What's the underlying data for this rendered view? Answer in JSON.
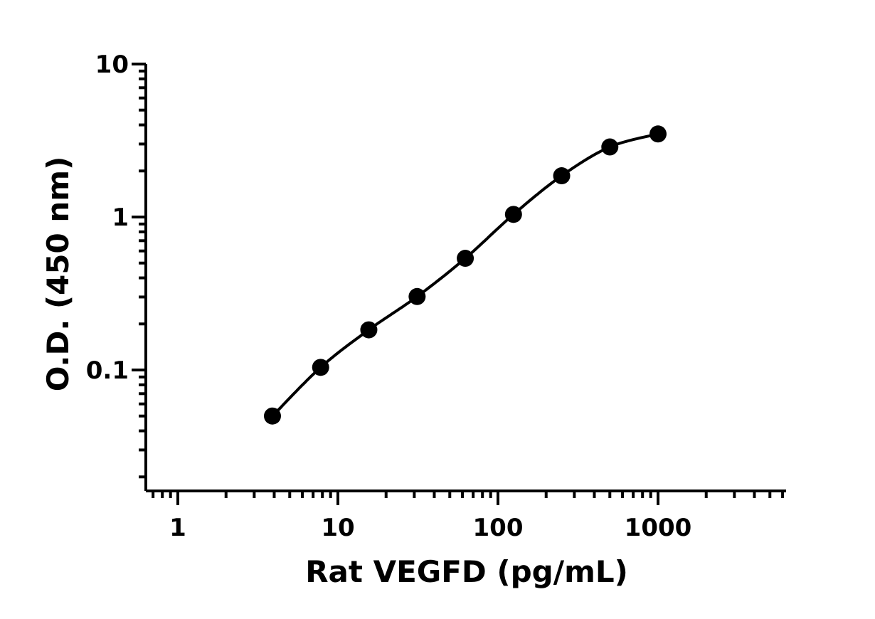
{
  "chart_data": {
    "type": "scatter",
    "title": "",
    "xlabel": "Rat VEGFD (pg/mL)",
    "ylabel": "O.D. (450 nm)",
    "x_scale": "log",
    "y_scale": "log",
    "xlim": [
      0.65,
      6000
    ],
    "ylim": [
      0.02,
      10
    ],
    "x_ticks": [
      {
        "value": 1,
        "label": "1"
      },
      {
        "value": 10,
        "label": "10"
      },
      {
        "value": 100,
        "label": "100"
      },
      {
        "value": 1000,
        "label": "1000"
      }
    ],
    "y_ticks": [
      {
        "value": 0.1,
        "label": "0.1"
      },
      {
        "value": 1,
        "label": "1"
      },
      {
        "value": 10,
        "label": "10"
      }
    ],
    "grid": false,
    "legend": "none",
    "series": [
      {
        "x": [
          3.9,
          7.8,
          15.6,
          31.25,
          62.5,
          125,
          250,
          500,
          1000
        ],
        "y": [
          0.05,
          0.104,
          0.183,
          0.302,
          0.537,
          1.04,
          1.86,
          2.87,
          3.49
        ],
        "fit_curve": true
      }
    ],
    "colors": {
      "marker": "#000000",
      "line": "#000000",
      "axis": "#000000"
    }
  }
}
